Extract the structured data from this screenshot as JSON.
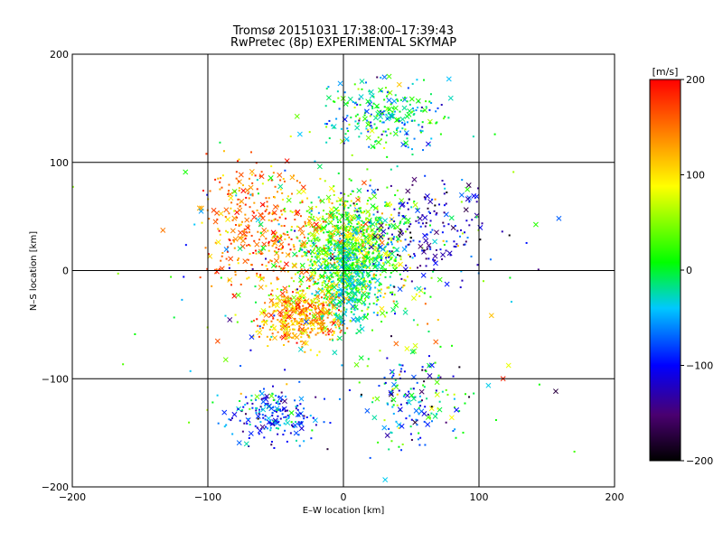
{
  "chart_data": {
    "type": "scatter",
    "title": "Tromsø 20151031 17:38:00–17:39:43",
    "subtitle": "RwPretec (8p) EXPERIMENTAL SKYMAP",
    "xlabel": "E–W location [km]",
    "ylabel": "N–S location [km]",
    "xlim": [
      -200,
      200
    ],
    "ylim": [
      -200,
      200
    ],
    "x_ticks": [
      -200,
      -100,
      0,
      100,
      200
    ],
    "y_ticks": [
      -200,
      -100,
      0,
      100,
      200
    ],
    "x_tick_labels": [
      "−200",
      "−100",
      "0",
      "100",
      "200"
    ],
    "y_tick_labels": [
      "−200",
      "−100",
      "0",
      "100",
      "200"
    ],
    "grid": true,
    "marker_types": [
      "dot",
      "cross"
    ],
    "colorbar": {
      "unit_label": "[m/s]",
      "range": [
        -200,
        200
      ],
      "ticks": [
        200,
        100,
        0,
        -100,
        -200
      ],
      "tick_labels": [
        "200",
        "100",
        "0",
        "−100",
        "−200"
      ],
      "colormap": [
        "#000000",
        "#4a0070",
        "#0000ff",
        "#00c8ff",
        "#00ff00",
        "#ffff00",
        "#ff8000",
        "#ff0000"
      ]
    },
    "cluster_summary": {
      "north_core_mean_velocity": 40,
      "south_core_mean_velocity": 130,
      "lower_left_mean_velocity": -80,
      "central_mean_velocity": -20
    }
  }
}
